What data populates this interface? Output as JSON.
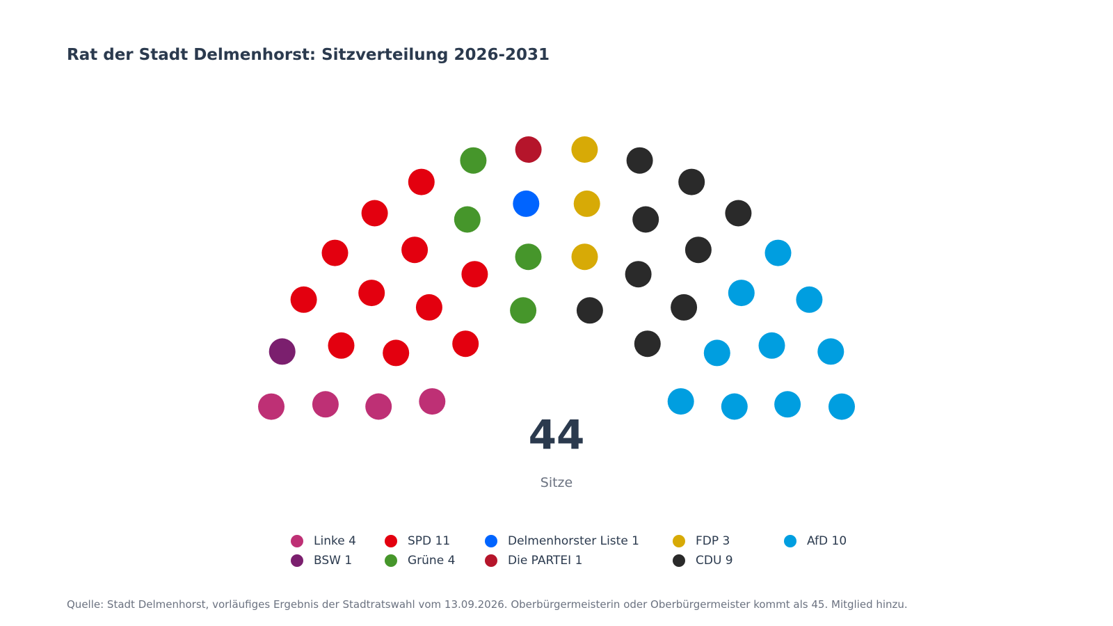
{
  "chart_data": {
    "type": "parliament",
    "title": "Rat der Stadt Delmenhorst: Sitzverteilung 2026-2031",
    "total_seats": "44",
    "total_label": "Sitze",
    "parties": [
      {
        "name": "Linke",
        "seats": 4,
        "color": "#be3075"
      },
      {
        "name": "BSW",
        "seats": 1,
        "color": "#7b1f6e"
      },
      {
        "name": "SPD",
        "seats": 11,
        "color": "#e3000f"
      },
      {
        "name": "Grüne",
        "seats": 4,
        "color": "#46962b"
      },
      {
        "name": "Delmenhorster Liste",
        "seats": 1,
        "color": "#0064ff"
      },
      {
        "name": "Die PARTEI",
        "seats": 1,
        "color": "#b5152b"
      },
      {
        "name": "FDP",
        "seats": 3,
        "color": "#d7aa06"
      },
      {
        "name": "CDU",
        "seats": 9,
        "color": "#2a2a2a"
      },
      {
        "name": "AfD",
        "seats": 10,
        "color": "#009ee0"
      }
    ],
    "legend": {
      "layout": "bottom",
      "entries": [
        {
          "label": "Linke 4",
          "color": "#be3075"
        },
        {
          "label": "BSW 1",
          "color": "#7b1f6e"
        },
        {
          "label": "SPD 11",
          "color": "#e3000f"
        },
        {
          "label": "Grüne 4",
          "color": "#46962b"
        },
        {
          "label": "Delmenhorster Liste 1",
          "color": "#0064ff"
        },
        {
          "label": "Die PARTEI 1",
          "color": "#b5152b"
        },
        {
          "label": "FDP 3",
          "color": "#d7aa06"
        },
        {
          "label": "CDU 9",
          "color": "#2a2a2a"
        },
        {
          "label": "AfD 10",
          "color": "#009ee0"
        }
      ]
    },
    "source": "Quelle: Stadt Delmenhorst, vorläufiges Ergebnis der Stadtratswahl vom 13.09.2026. Oberbürgermeisterin oder Oberbürgermeister kommt als 45. Mitglied hinzu."
  }
}
